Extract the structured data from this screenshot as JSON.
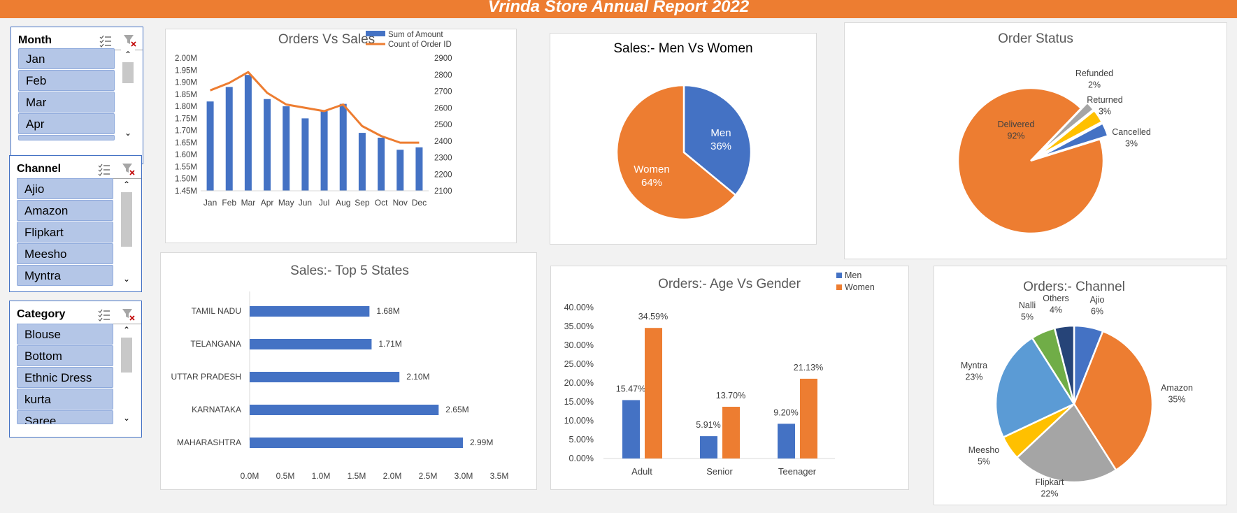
{
  "banner": {
    "title": "Vrinda Store Annual Report 2022"
  },
  "colors": {
    "accent": "#ed7d31",
    "blue": "#4472c4",
    "grey": "#a5a5a5",
    "yellow": "#ffc000",
    "lightblue": "#5b9bd5",
    "green": "#70ad47",
    "navy": "#264478",
    "slicer_item": "#b4c6e7"
  },
  "slicers": {
    "month": {
      "title": "Month",
      "items": [
        "Jan",
        "Feb",
        "Mar",
        "Apr",
        ""
      ]
    },
    "channel": {
      "title": "Channel",
      "items": [
        "Ajio",
        "Amazon",
        "Flipkart",
        "Meesho",
        "Myntra"
      ]
    },
    "category": {
      "title": "Category",
      "items": [
        "Blouse",
        "Bottom",
        "Ethnic Dress",
        "kurta",
        "Saree"
      ]
    }
  },
  "chart_data": [
    {
      "id": "orders-vs-sales",
      "type": "bar+line",
      "title": "Orders Vs Sales",
      "categories": [
        "Jan",
        "Feb",
        "Mar",
        "Apr",
        "May",
        "Jun",
        "Jul",
        "Aug",
        "Sep",
        "Oct",
        "Nov",
        "Dec"
      ],
      "series": [
        {
          "name": "Sum of Amount",
          "type": "bar",
          "axis": "primary",
          "values": [
            1.82,
            1.88,
            1.93,
            1.83,
            1.8,
            1.75,
            1.78,
            1.81,
            1.69,
            1.67,
            1.62,
            1.63
          ]
        },
        {
          "name": "Count of Order ID",
          "type": "line",
          "axis": "secondary",
          "values": [
            2705,
            2750,
            2815,
            2690,
            2620,
            2600,
            2580,
            2620,
            2490,
            2430,
            2390,
            2390
          ]
        }
      ],
      "y_ticks": [
        "2.00M",
        "1.95M",
        "1.90M",
        "1.85M",
        "1.80M",
        "1.75M",
        "1.70M",
        "1.65M",
        "1.60M",
        "1.55M",
        "1.50M",
        "1.45M"
      ],
      "ylim": [
        1.45,
        2.0
      ],
      "y2_ticks": [
        "2900",
        "2800",
        "2700",
        "2600",
        "2500",
        "2400",
        "2300",
        "2200",
        "2100"
      ],
      "y2lim": [
        2100,
        2900
      ],
      "legend": "top-right"
    },
    {
      "id": "men-vs-women",
      "type": "pie",
      "title": "Sales:- Men Vs Women",
      "slices": [
        {
          "label": "Men",
          "value": 36,
          "pct": "36%",
          "color": "#4472c4"
        },
        {
          "label": "Women",
          "value": 64,
          "pct": "64%",
          "color": "#ed7d31"
        }
      ]
    },
    {
      "id": "order-status",
      "type": "pie",
      "title": "Order Status",
      "slices": [
        {
          "label": "Cancelled",
          "value": 3,
          "pct": "3%",
          "color": "#4472c4"
        },
        {
          "label": "Delivered",
          "value": 92,
          "pct": "92%",
          "color": "#ed7d31"
        },
        {
          "label": "Refunded",
          "value": 2,
          "pct": "2%",
          "color": "#a5a5a5"
        },
        {
          "label": "Returned",
          "value": 3,
          "pct": "3%",
          "color": "#ffc000"
        }
      ]
    },
    {
      "id": "top-5-states",
      "type": "bar",
      "orientation": "horizontal",
      "title": "Sales:- Top 5 States",
      "categories": [
        "TAMIL NADU",
        "TELANGANA",
        "UTTAR PRADESH",
        "KARNATAKA",
        "MAHARASHTRA"
      ],
      "values": [
        1.68,
        1.71,
        2.1,
        2.65,
        2.99
      ],
      "value_labels": [
        "1.68M",
        "1.71M",
        "2.10M",
        "2.65M",
        "2.99M"
      ],
      "x_ticks": [
        "0.0M",
        "0.5M",
        "1.0M",
        "1.5M",
        "2.0M",
        "2.5M",
        "3.0M",
        "3.5M"
      ],
      "xlim": [
        0,
        3.5
      ]
    },
    {
      "id": "age-vs-gender",
      "type": "bar",
      "title": "Orders:- Age Vs Gender",
      "categories": [
        "Adult",
        "Senior",
        "Teenager"
      ],
      "series": [
        {
          "name": "Men",
          "values": [
            15.47,
            5.91,
            9.2
          ],
          "labels": [
            "15.47%",
            "5.91%",
            "9.20%"
          ]
        },
        {
          "name": "Women",
          "values": [
            34.59,
            13.7,
            21.13
          ],
          "labels": [
            "34.59%",
            "13.70%",
            "21.13%"
          ]
        }
      ],
      "y_ticks": [
        "40.00%",
        "35.00%",
        "30.00%",
        "25.00%",
        "20.00%",
        "15.00%",
        "10.00%",
        "5.00%",
        "0.00%"
      ],
      "ylim": [
        0,
        40
      ],
      "legend": "top-right"
    },
    {
      "id": "orders-channel",
      "type": "pie",
      "title": "Orders:- Channel",
      "slices": [
        {
          "label": "Ajio",
          "value": 6,
          "pct": "6%",
          "color": "#4472c4"
        },
        {
          "label": "Amazon",
          "value": 35,
          "pct": "35%",
          "color": "#ed7d31"
        },
        {
          "label": "Flipkart",
          "value": 22,
          "pct": "22%",
          "color": "#a5a5a5"
        },
        {
          "label": "Meesho",
          "value": 5,
          "pct": "5%",
          "color": "#ffc000"
        },
        {
          "label": "Myntra",
          "value": 23,
          "pct": "23%",
          "color": "#5b9bd5"
        },
        {
          "label": "Nalli",
          "value": 5,
          "pct": "5%",
          "color": "#70ad47"
        },
        {
          "label": "Others",
          "value": 4,
          "pct": "4%",
          "color": "#264478"
        }
      ]
    }
  ]
}
